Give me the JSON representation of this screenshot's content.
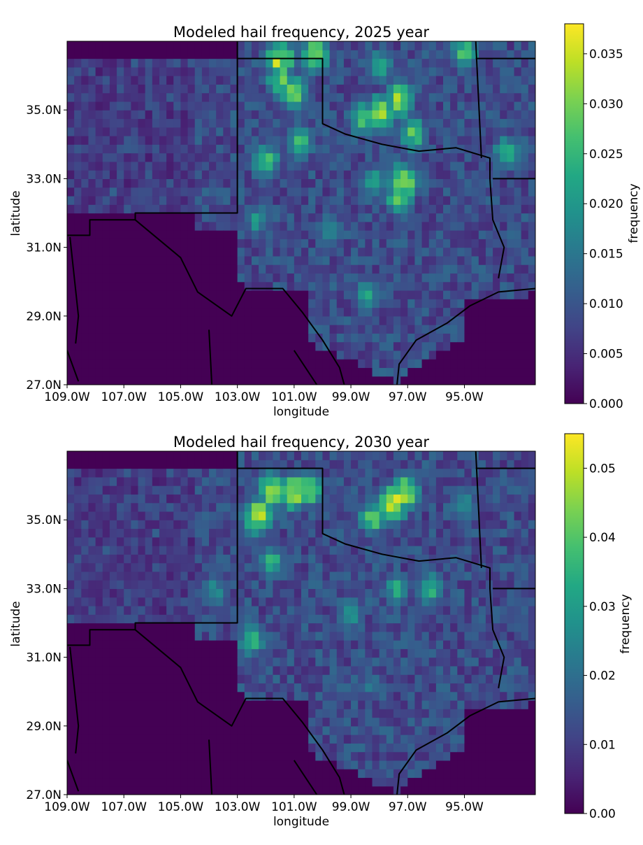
{
  "chart_data": [
    {
      "type": "heatmap",
      "title": "Modeled hail frequency, 2025 year",
      "xlabel": "longitude",
      "ylabel": "latitude",
      "xlim": [
        -109.0,
        -92.5
      ],
      "ylim": [
        27.0,
        37.0
      ],
      "x_ticks": [
        "109.0W",
        "107.0W",
        "105.0W",
        "103.0W",
        "101.0W",
        "99.0W",
        "97.0W",
        "95.0W"
      ],
      "y_ticks": [
        "27.0N",
        "29.0N",
        "31.0N",
        "33.0N",
        "35.0N"
      ],
      "colorbar": {
        "label": "frequency",
        "vmin": 0.0,
        "vmax": 0.038,
        "ticks": [
          "0.000",
          "0.005",
          "0.010",
          "0.015",
          "0.020",
          "0.025",
          "0.030",
          "0.035"
        ],
        "colormap": "viridis"
      },
      "hotspots": [
        {
          "lon": -97.2,
          "lat": 32.9,
          "value": 0.038
        },
        {
          "lon": -98.0,
          "lat": 34.9,
          "value": 0.035
        },
        {
          "lon": -101.5,
          "lat": 36.5,
          "value": 0.036
        },
        {
          "lon": -100.3,
          "lat": 36.6,
          "value": 0.034
        },
        {
          "lon": -97.3,
          "lat": 35.3,
          "value": 0.033
        },
        {
          "lon": -98.6,
          "lat": 34.8,
          "value": 0.03
        },
        {
          "lon": -101.5,
          "lat": 35.9,
          "value": 0.03
        },
        {
          "lon": -101.0,
          "lat": 35.5,
          "value": 0.03
        },
        {
          "lon": -96.8,
          "lat": 34.3,
          "value": 0.028
        },
        {
          "lon": -97.3,
          "lat": 32.5,
          "value": 0.029
        },
        {
          "lon": -102.0,
          "lat": 33.5,
          "value": 0.028
        },
        {
          "lon": -100.8,
          "lat": 34.1,
          "value": 0.026
        },
        {
          "lon": -95.0,
          "lat": 36.7,
          "value": 0.028
        },
        {
          "lon": -98.2,
          "lat": 32.9,
          "value": 0.022
        },
        {
          "lon": -98.4,
          "lat": 29.6,
          "value": 0.022
        },
        {
          "lon": -93.5,
          "lat": 33.8,
          "value": 0.024
        },
        {
          "lon": -99.7,
          "lat": 31.5,
          "value": 0.02
        },
        {
          "lon": -102.3,
          "lat": 31.8,
          "value": 0.02
        },
        {
          "lon": -98.0,
          "lat": 36.3,
          "value": 0.024
        }
      ]
    },
    {
      "type": "heatmap",
      "title": "Modeled hail frequency, 2030 year",
      "xlabel": "longitude",
      "ylabel": "latitude",
      "xlim": [
        -109.0,
        -92.5
      ],
      "ylim": [
        27.0,
        37.0
      ],
      "x_ticks": [
        "109.0W",
        "107.0W",
        "105.0W",
        "103.0W",
        "101.0W",
        "99.0W",
        "97.0W",
        "95.0W"
      ],
      "y_ticks": [
        "27.0N",
        "29.0N",
        "31.0N",
        "33.0N",
        "35.0N"
      ],
      "colorbar": {
        "label": "frequency",
        "vmin": 0.0,
        "vmax": 0.055,
        "ticks": [
          "0.00",
          "0.01",
          "0.02",
          "0.03",
          "0.04",
          "0.05"
        ],
        "colormap": "viridis"
      },
      "hotspots": [
        {
          "lon": -102.3,
          "lat": 35.1,
          "value": 0.055
        },
        {
          "lon": -101.8,
          "lat": 35.9,
          "value": 0.05
        },
        {
          "lon": -101.0,
          "lat": 35.8,
          "value": 0.052
        },
        {
          "lon": -100.5,
          "lat": 35.9,
          "value": 0.045
        },
        {
          "lon": -97.5,
          "lat": 35.5,
          "value": 0.055
        },
        {
          "lon": -97.1,
          "lat": 35.8,
          "value": 0.05
        },
        {
          "lon": -98.2,
          "lat": 35.1,
          "value": 0.042
        },
        {
          "lon": -96.2,
          "lat": 33.0,
          "value": 0.035
        },
        {
          "lon": -97.4,
          "lat": 33.0,
          "value": 0.033
        },
        {
          "lon": -102.5,
          "lat": 31.5,
          "value": 0.035
        },
        {
          "lon": -101.8,
          "lat": 33.8,
          "value": 0.035
        },
        {
          "lon": -103.8,
          "lat": 32.9,
          "value": 0.03
        },
        {
          "lon": -99.0,
          "lat": 32.3,
          "value": 0.03
        },
        {
          "lon": -95.0,
          "lat": 35.4,
          "value": 0.03
        },
        {
          "lon": -98.3,
          "lat": 30.2,
          "value": 0.022
        }
      ]
    }
  ]
}
